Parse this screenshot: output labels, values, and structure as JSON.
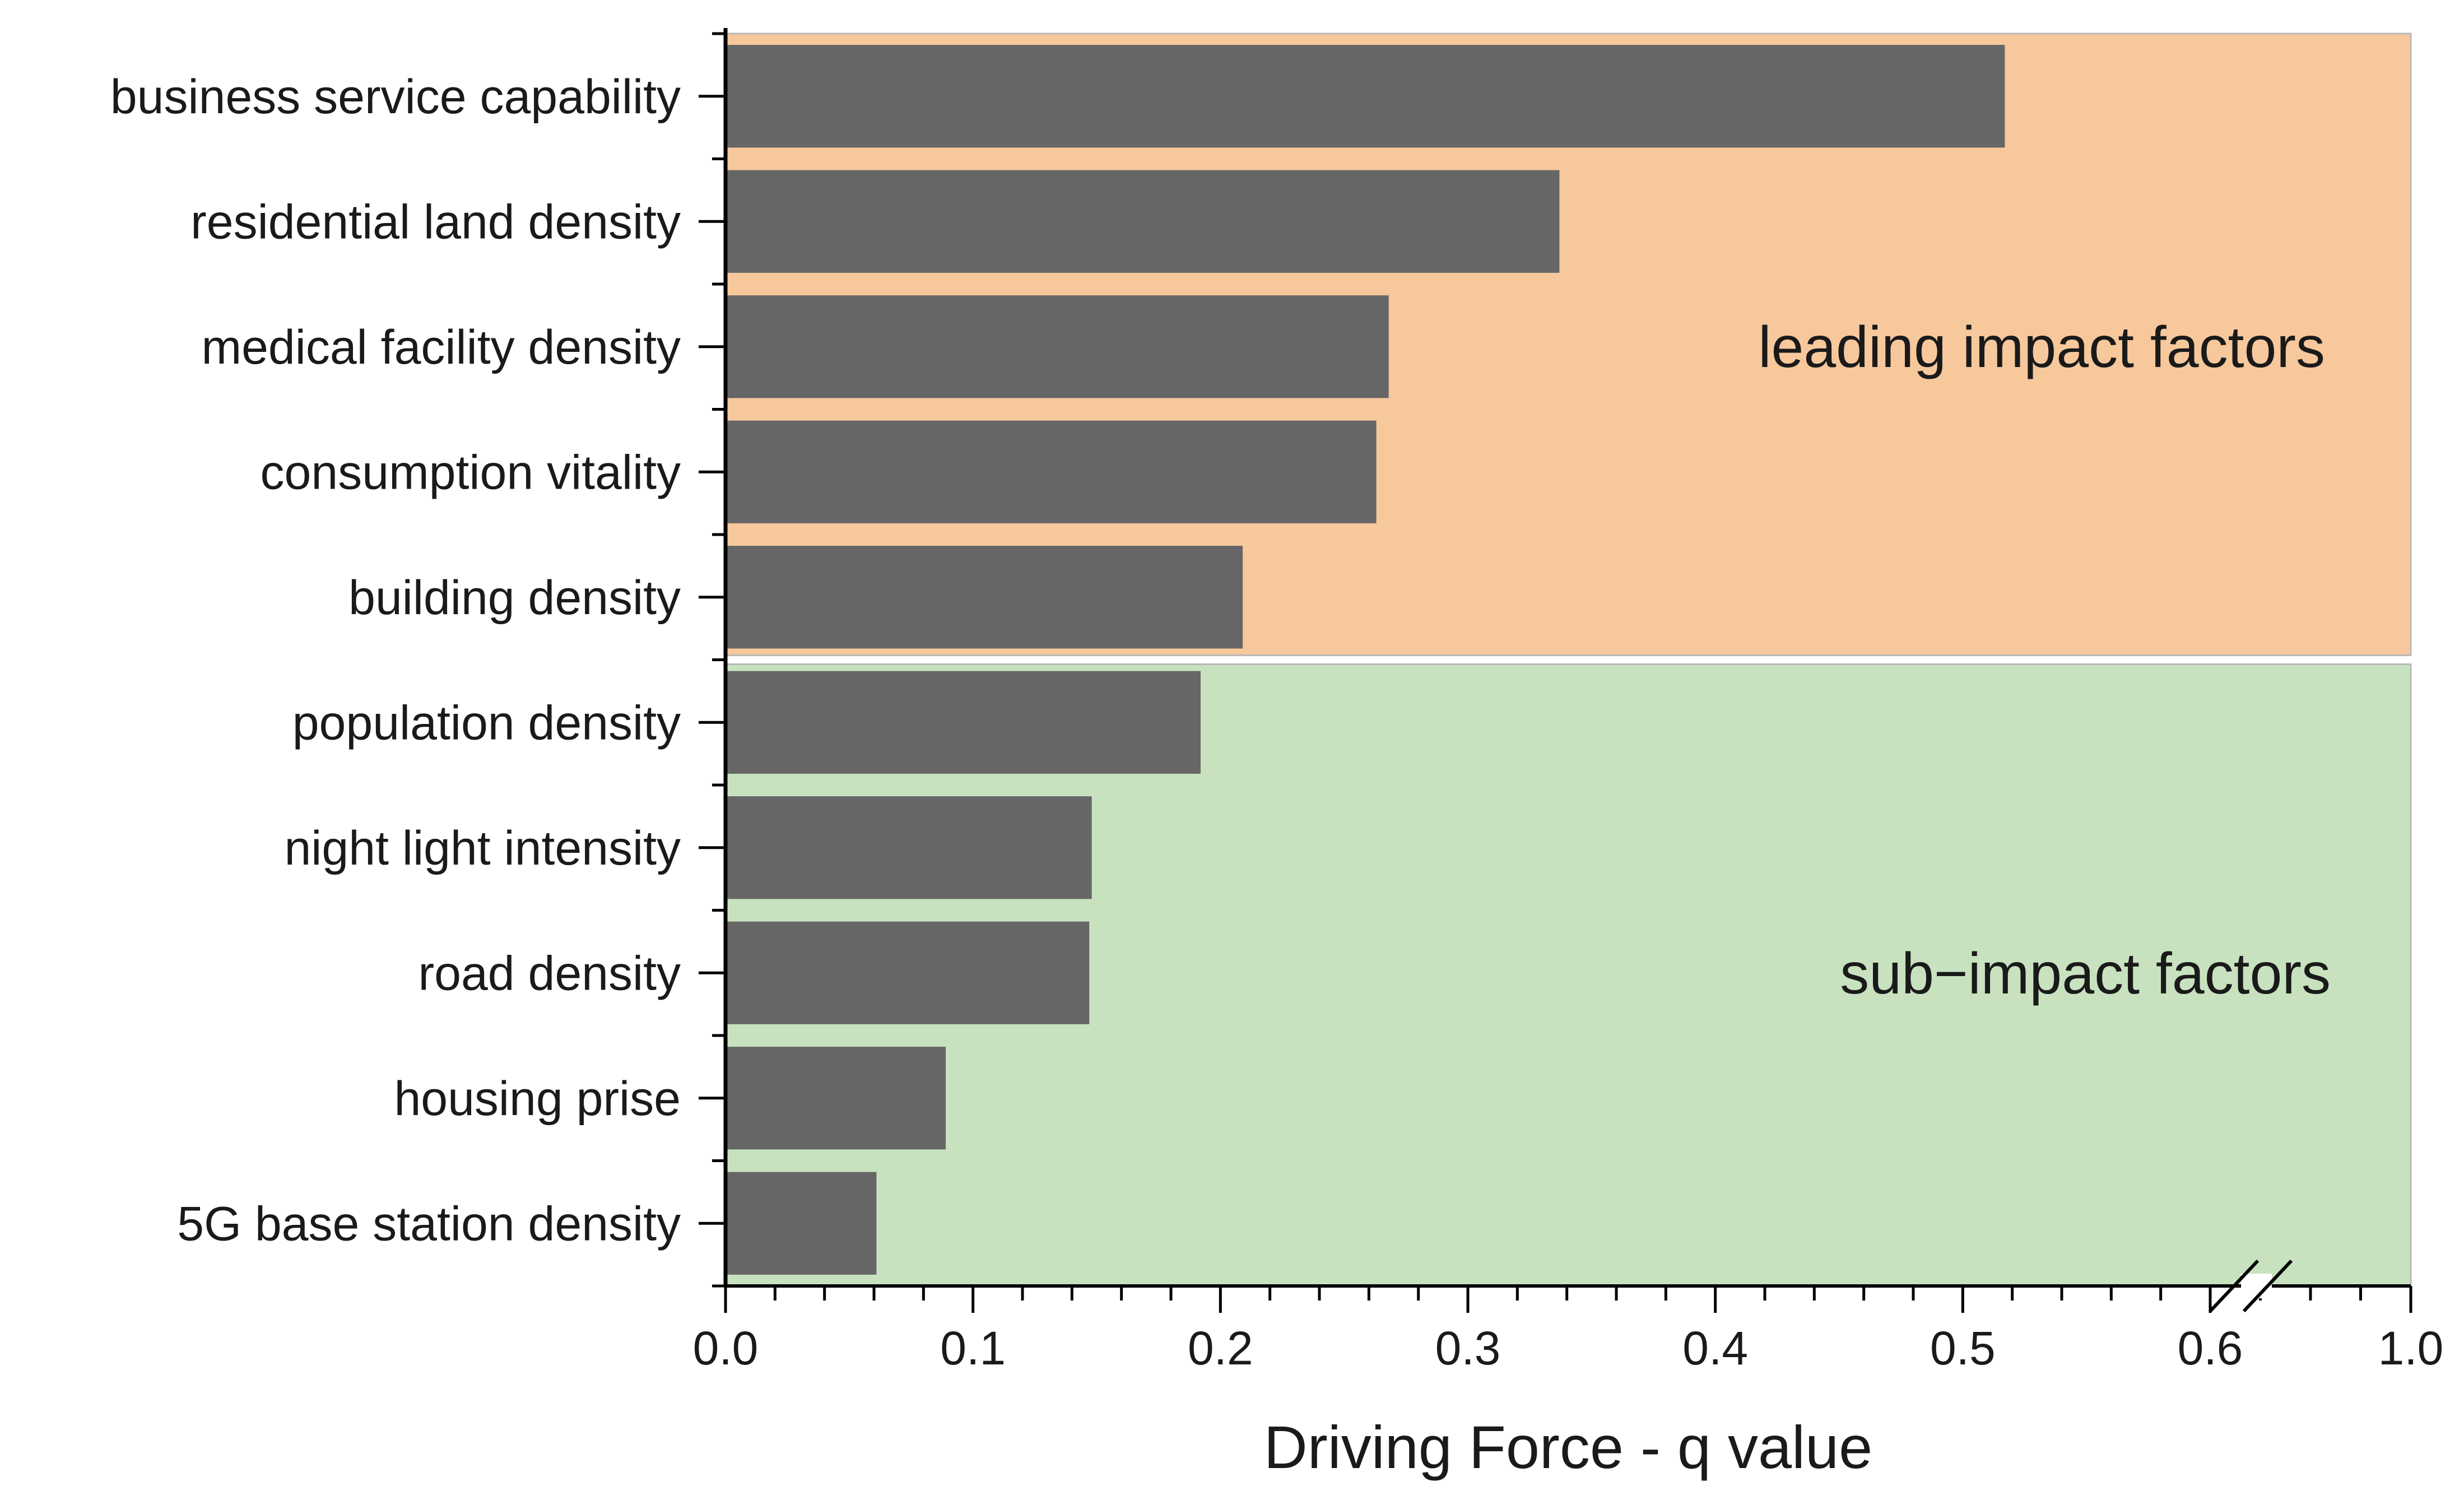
{
  "chart_data": {
    "type": "bar",
    "orientation": "horizontal",
    "categories": [
      "business service capability",
      "residential land density",
      "medical facility density",
      "consumption vitality",
      "building density",
      "population density",
      "night light intensity",
      "road density",
      "housing prise",
      "5G base station density"
    ],
    "values": [
      0.517,
      0.337,
      0.268,
      0.263,
      0.209,
      0.192,
      0.148,
      0.147,
      0.089,
      0.061
    ],
    "xlabel": "Driving Force - q value",
    "ylabel": "",
    "xlim": [
      0,
      1.0
    ],
    "axis_break": [
      0.6,
      1.0
    ],
    "x_ticks": [
      "0.0",
      "0.1",
      "0.2",
      "0.3",
      "0.4",
      "0.5",
      "0.6",
      "1.0"
    ],
    "x_tick_values": [
      0,
      0.1,
      0.2,
      0.3,
      0.4,
      0.5,
      0.6,
      1.0
    ],
    "regions": [
      {
        "label": "leading impact factors",
        "from_category": 0,
        "to_category": 4,
        "color": "#f6c89c"
      },
      {
        "label": "sub−impact factors",
        "from_category": 5,
        "to_category": 9,
        "color": "#c8e2bf"
      }
    ],
    "bar_color": "#666666",
    "grid": false
  }
}
